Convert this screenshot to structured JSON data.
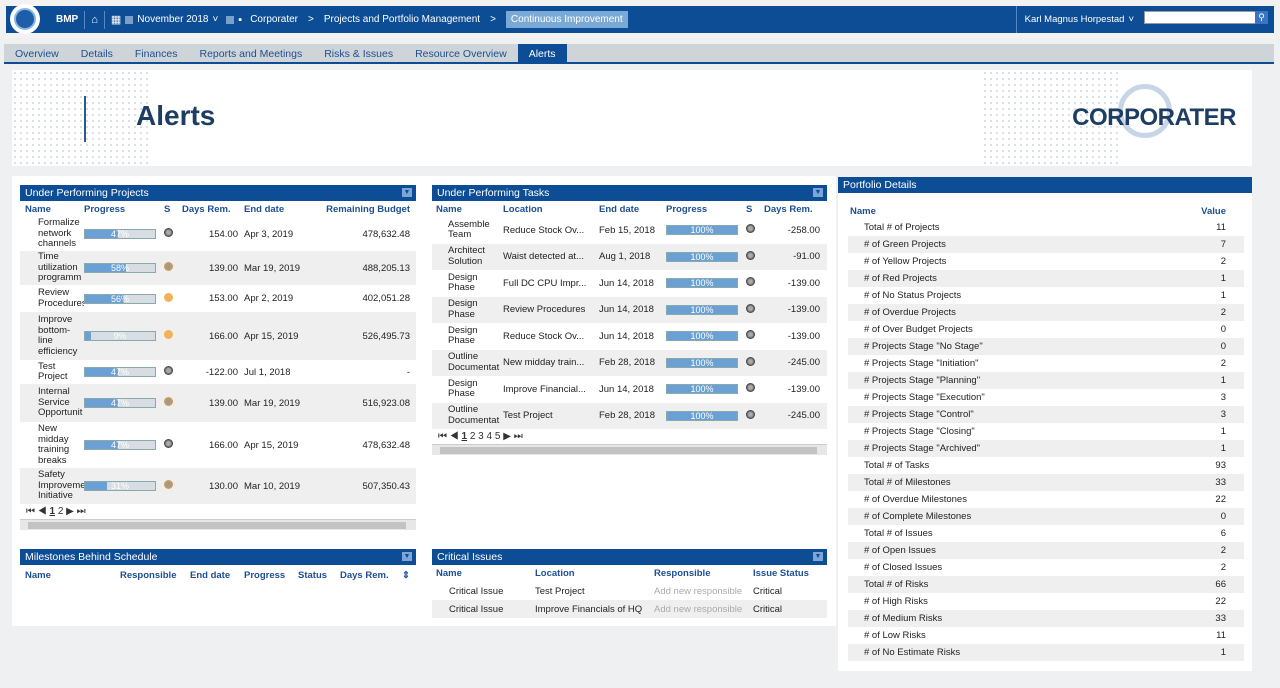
{
  "topbar": {
    "app_name": "BMP",
    "period": "November 2018",
    "breadcrumb": [
      "Corporater",
      "Projects and Portfolio Management"
    ],
    "breadcrumb_active": "Continuous Improvement",
    "user": "Karl Magnus Horpestad"
  },
  "tabs": [
    "Overview",
    "Details",
    "Finances",
    "Reports and Meetings",
    "Risks & Issues",
    "Resource Overview",
    "Alerts"
  ],
  "header": {
    "title": "Alerts",
    "brand": "CORPORATER"
  },
  "under_projects": {
    "title": "Under Performing Projects",
    "columns": [
      "Name",
      "Progress",
      "S",
      "Days Rem.",
      "End date",
      "Remaining Budget"
    ],
    "rows": [
      {
        "name": "Formalize network channels",
        "progress": "47%",
        "pct": 0.47,
        "status": "gray",
        "days": "154.00",
        "end": "Apr 3, 2019",
        "budget": "478,632.48"
      },
      {
        "name": "Time utilization programm",
        "progress": "58%",
        "pct": 0.58,
        "status": "orangeg",
        "days": "139.00",
        "end": "Mar 19, 2019",
        "budget": "488,205.13"
      },
      {
        "name": "Review Procedures",
        "progress": "56%",
        "pct": 0.56,
        "status": "orange",
        "days": "153.00",
        "end": "Apr 2, 2019",
        "budget": "402,051.28"
      },
      {
        "name": "Improve bottom-line efficiency",
        "progress": "9%",
        "pct": 0.09,
        "status": "orange",
        "days": "166.00",
        "end": "Apr 15, 2019",
        "budget": "526,495.73"
      },
      {
        "name": "Test Project",
        "progress": "47%",
        "pct": 0.47,
        "status": "gray",
        "days": "-122.00",
        "end": "Jul 1, 2018",
        "budget": "-"
      },
      {
        "name": "Internal Service Opportunit",
        "progress": "47%",
        "pct": 0.47,
        "status": "orangeg",
        "days": "139.00",
        "end": "Mar 19, 2019",
        "budget": "516,923.08"
      },
      {
        "name": "New midday training breaks",
        "progress": "47%",
        "pct": 0.47,
        "status": "gray",
        "days": "166.00",
        "end": "Apr 15, 2019",
        "budget": "478,632.48"
      },
      {
        "name": "Safety Improvement Initiative",
        "progress": "31%",
        "pct": 0.31,
        "status": "orangeg",
        "days": "130.00",
        "end": "Mar 10, 2019",
        "budget": "507,350.43"
      }
    ],
    "pager": [
      "1",
      "2"
    ]
  },
  "under_tasks": {
    "title": "Under Performing Tasks",
    "columns": [
      "Name",
      "Location",
      "End date",
      "Progress",
      "S",
      "Days Rem."
    ],
    "rows": [
      {
        "name": "Assemble Team",
        "location": "Reduce Stock Ov...",
        "end": "Feb 15, 2018",
        "progress": "100%",
        "pct": 1,
        "days": "-258.00"
      },
      {
        "name": "Architect Solution",
        "location": "Waist detected at...",
        "end": "Aug 1, 2018",
        "progress": "100%",
        "pct": 1,
        "days": "-91.00"
      },
      {
        "name": "Design Phase",
        "location": "Full DC CPU Impr...",
        "end": "Jun 14, 2018",
        "progress": "100%",
        "pct": 1,
        "days": "-139.00"
      },
      {
        "name": "Design Phase",
        "location": "Review Procedures",
        "end": "Jun 14, 2018",
        "progress": "100%",
        "pct": 1,
        "days": "-139.00"
      },
      {
        "name": "Design Phase",
        "location": "Reduce Stock Ov...",
        "end": "Jun 14, 2018",
        "progress": "100%",
        "pct": 1,
        "days": "-139.00"
      },
      {
        "name": "Outline Documentat",
        "location": "New midday train...",
        "end": "Feb 28, 2018",
        "progress": "100%",
        "pct": 1,
        "days": "-245.00"
      },
      {
        "name": "Design Phase",
        "location": "Improve Financial...",
        "end": "Jun 14, 2018",
        "progress": "100%",
        "pct": 1,
        "days": "-139.00"
      },
      {
        "name": "Outline Documentat",
        "location": "Test Project",
        "end": "Feb 28, 2018",
        "progress": "100%",
        "pct": 1,
        "days": "-245.00"
      }
    ],
    "pager": [
      "1",
      "2",
      "3",
      "4",
      "5"
    ]
  },
  "milestones": {
    "title": "Milestones Behind Schedule",
    "columns": [
      "Name",
      "Responsible",
      "End date",
      "Progress",
      "Status",
      "Days Rem."
    ]
  },
  "critical": {
    "title": "Critical Issues",
    "columns": [
      "Name",
      "Location",
      "Responsible",
      "Issue Status"
    ],
    "rows": [
      {
        "name": "Critical Issue",
        "location": "Test Project",
        "responsible": "Add new responsible",
        "status": "Critical"
      },
      {
        "name": "Critical Issue",
        "location": "Improve Financials of HQ",
        "responsible": "Add new responsible",
        "status": "Critical"
      }
    ]
  },
  "portfolio": {
    "title": "Portfolio Details",
    "col_name": "Name",
    "col_value": "Value",
    "rows": [
      {
        "name": "Total # of Projects",
        "value": "11"
      },
      {
        "name": "# of Green Projects",
        "value": "7"
      },
      {
        "name": "# of Yellow Projects",
        "value": "2"
      },
      {
        "name": "# of Red Projects",
        "value": "1"
      },
      {
        "name": "# of No Status Projects",
        "value": "1"
      },
      {
        "name": "# of Overdue Projects",
        "value": "2"
      },
      {
        "name": "# of Over Budget Projects",
        "value": "0"
      },
      {
        "name": "# Projects Stage \"No Stage\"",
        "value": "0"
      },
      {
        "name": "# Projects Stage \"Initiation\"",
        "value": "2"
      },
      {
        "name": "# Projects Stage \"Planning\"",
        "value": "1"
      },
      {
        "name": "# Projects Stage \"Execution\"",
        "value": "3"
      },
      {
        "name": "# Projects Stage \"Control\"",
        "value": "3"
      },
      {
        "name": "# Projects Stage \"Closing\"",
        "value": "1"
      },
      {
        "name": "# Projects Stage \"Archived\"",
        "value": "1"
      },
      {
        "name": "Total # of Tasks",
        "value": "93"
      },
      {
        "name": "Total # of Milestones",
        "value": "33"
      },
      {
        "name": "# of Overdue Milestones",
        "value": "22"
      },
      {
        "name": "# of Complete Milestones",
        "value": "0"
      },
      {
        "name": "Total # of Issues",
        "value": "6"
      },
      {
        "name": "# of Open Issues",
        "value": "2"
      },
      {
        "name": "# of Closed Issues",
        "value": "2"
      },
      {
        "name": "Total # of Risks",
        "value": "66"
      },
      {
        "name": "# of High Risks",
        "value": "22"
      },
      {
        "name": "# of Medium Risks",
        "value": "33"
      },
      {
        "name": "# of Low Risks",
        "value": "11"
      },
      {
        "name": "# of No Estimate Risks",
        "value": "1"
      }
    ]
  }
}
